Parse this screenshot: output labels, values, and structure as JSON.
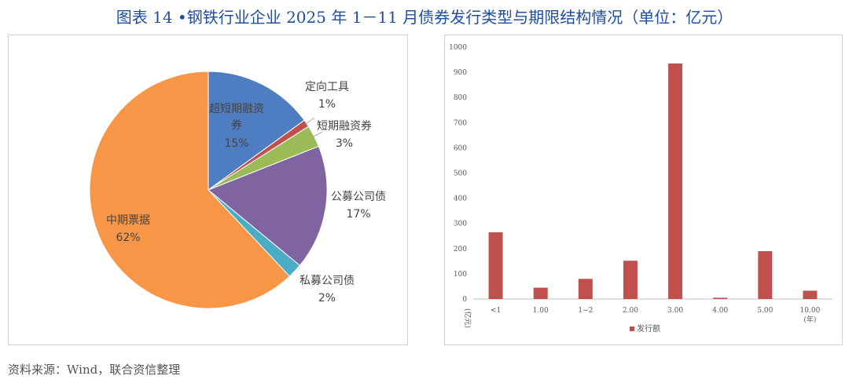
{
  "title": "图表 14 •钢铁行业企业 2025 年 1－11 月债券发行类型与期限结构情况（单位：亿元）",
  "source": "资料来源：Wind，联合资信整理",
  "chart_data": [
    {
      "type": "pie",
      "slices": [
        {
          "label": "超短期融资券",
          "percent_label": "15%",
          "value": 15,
          "color": "#4f7dc2"
        },
        {
          "label": "定向工具",
          "percent_label": "1%",
          "value": 1,
          "color": "#c0504d"
        },
        {
          "label": "短期融资券",
          "percent_label": "3%",
          "value": 3,
          "color": "#9bbb59"
        },
        {
          "label": "公募公司债",
          "percent_label": "17%",
          "value": 17,
          "color": "#8064a2"
        },
        {
          "label": "私募公司债",
          "percent_label": "2%",
          "value": 2,
          "color": "#4bacc6"
        },
        {
          "label": "中期票据",
          "percent_label": "62%",
          "value": 62,
          "color": "#f79646"
        }
      ]
    },
    {
      "type": "bar",
      "categories": [
        "<1",
        "1.00",
        "1~2",
        "2.00",
        "3.00",
        "4.00",
        "5.00",
        "10.00"
      ],
      "x_unit": "(年)",
      "y_unit": "(亿元)",
      "series": [
        {
          "name": "发行额",
          "color": "#c0504d",
          "values": [
            265,
            45,
            80,
            152,
            935,
            5,
            190,
            33
          ]
        }
      ],
      "ylim": [
        0,
        1000
      ],
      "yticks": [
        0,
        100,
        200,
        300,
        400,
        500,
        600,
        700,
        800,
        900,
        1000
      ],
      "grid": false,
      "legend": "bottom"
    }
  ]
}
